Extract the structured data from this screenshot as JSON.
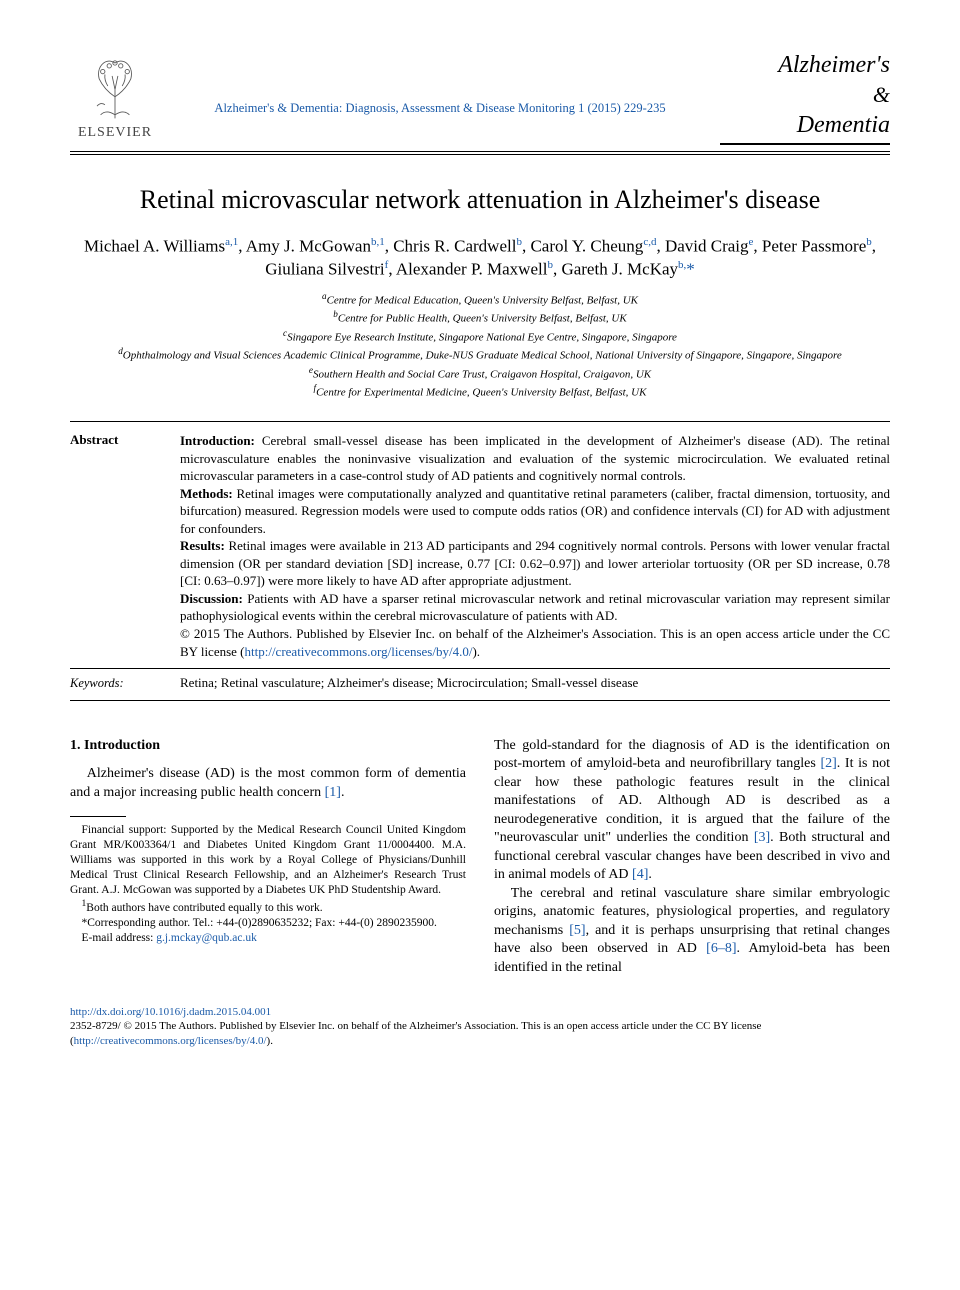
{
  "publisher": {
    "name": "ELSEVIER"
  },
  "journal": {
    "reference": "Alzheimer's & Dementia: Diagnosis, Assessment & Disease Monitoring 1 (2015) 229-235",
    "logo_line1": "Alzheimer's",
    "logo_amp": "&",
    "logo_line2": "Dementia"
  },
  "title": "Retinal microvascular network attenuation in Alzheimer's disease",
  "authors_html": "Michael A. Williams<sup>a,1</sup>, Amy J. McGowan<sup>b,1</sup>, Chris R. Cardwell<sup>b</sup>, Carol Y. Cheung<sup>c,d</sup>, David Craig<sup>e</sup>, Peter Passmore<sup>b</sup>, Giuliana Silvestri<sup>f</sup>, Alexander P. Maxwell<sup>b</sup>, Gareth J. McKay<sup>b,</sup><span class=\"ast\">*</span>",
  "affiliations": [
    {
      "key": "a",
      "text": "Centre for Medical Education, Queen's University Belfast, Belfast, UK"
    },
    {
      "key": "b",
      "text": "Centre for Public Health, Queen's University Belfast, Belfast, UK"
    },
    {
      "key": "c",
      "text": "Singapore Eye Research Institute, Singapore National Eye Centre, Singapore, Singapore"
    },
    {
      "key": "d",
      "text": "Ophthalmology and Visual Sciences Academic Clinical Programme, Duke-NUS Graduate Medical School, National University of Singapore, Singapore, Singapore"
    },
    {
      "key": "e",
      "text": "Southern Health and Social Care Trust, Craigavon Hospital, Craigavon, UK"
    },
    {
      "key": "f",
      "text": "Centre for Experimental Medicine, Queen's University Belfast, Belfast, UK"
    }
  ],
  "abstract": {
    "label": "Abstract",
    "intro_label": "Introduction:",
    "intro": "Cerebral small-vessel disease has been implicated in the development of Alzheimer's disease (AD). The retinal microvasculature enables the noninvasive visualization and evaluation of the systemic microcirculation. We evaluated retinal microvascular parameters in a case-control study of AD patients and cognitively normal controls.",
    "methods_label": "Methods:",
    "methods": "Retinal images were computationally analyzed and quantitative retinal parameters (caliber, fractal dimension, tortuosity, and bifurcation) measured. Regression models were used to compute odds ratios (OR) and confidence intervals (CI) for AD with adjustment for confounders.",
    "results_label": "Results:",
    "results": "Retinal images were available in 213 AD participants and 294 cognitively normal controls. Persons with lower venular fractal dimension (OR per standard deviation [SD] increase, 0.77 [CI: 0.62–0.97]) and lower arteriolar tortuosity (OR per SD increase, 0.78 [CI: 0.63–0.97]) were more likely to have AD after appropriate adjustment.",
    "discussion_label": "Discussion:",
    "discussion": "Patients with AD have a sparser retinal microvascular network and retinal microvascular variation may represent similar pathophysiological events within the cerebral microvasculature of patients with AD.",
    "copyright": "© 2015 The Authors. Published by Elsevier Inc. on behalf of the Alzheimer's Association. This is an open access article under the CC BY license (",
    "license_url": "http://creativecommons.org/licenses/by/4.0/",
    "copyright_close": ")."
  },
  "keywords": {
    "label": "Keywords:",
    "text": "Retina; Retinal vasculature; Alzheimer's disease; Microcirculation; Small-vessel disease"
  },
  "section1": {
    "heading": "1. Introduction",
    "para1a": "Alzheimer's disease (AD) is the most common form of dementia and a major increasing public health concern ",
    "ref1": "[1]",
    "para1b": ".",
    "col2_a": "The gold-standard for the diagnosis of AD is the identification on post-mortem of amyloid-beta and neurofibrillary tangles ",
    "ref2": "[2]",
    "col2_b": ". It is not clear how these pathologic features result in the clinical manifestations of AD. Although AD is described as a neurodegenerative condition, it is argued that the failure of the \"neurovascular unit\" underlies the condition ",
    "ref3": "[3]",
    "col2_c": ". Both structural and functional cerebral vascular changes have been described in vivo and in animal models of AD ",
    "ref4": "[4]",
    "col2_d": ".",
    "para2a": "The cerebral and retinal vasculature share similar embryologic origins, anatomic features, physiological properties, and regulatory mechanisms ",
    "ref5": "[5]",
    "para2b": ", and it is perhaps unsurprising that retinal changes have also been observed in AD ",
    "ref68": "[6–8]",
    "para2c": ". Amyloid-beta has been identified in the retinal"
  },
  "footnotes": {
    "funding": "Financial support: Supported by the Medical Research Council United Kingdom Grant MR/K003364/1 and Diabetes United Kingdom Grant 11/0004400. M.A. Williams was supported in this work by a Royal College of Physicians/Dunhill Medical Trust Clinical Research Fellowship, and an Alzheimer's Research Trust Grant. A.J. McGowan was supported by a Diabetes UK PhD Studentship Award.",
    "equal": "Both authors have contributed equally to this work.",
    "equal_sup": "1",
    "corresponding": "*Corresponding author. Tel.: +44-(0)2890635232; Fax: +44-(0) 2890235900.",
    "email_label": "E-mail address: ",
    "email": "g.j.mckay@qub.ac.uk"
  },
  "footer": {
    "doi": "http://dx.doi.org/10.1016/j.dadm.2015.04.001",
    "issn_line": "2352-8729/ © 2015 The Authors. Published by Elsevier Inc. on behalf of the Alzheimer's Association. This is an open access article under the CC BY license (",
    "license_url": "http://creativecommons.org/licenses/by/4.0/",
    "close": ")."
  },
  "colors": {
    "link": "#1a5aa8",
    "text": "#000000",
    "bg": "#ffffff"
  }
}
